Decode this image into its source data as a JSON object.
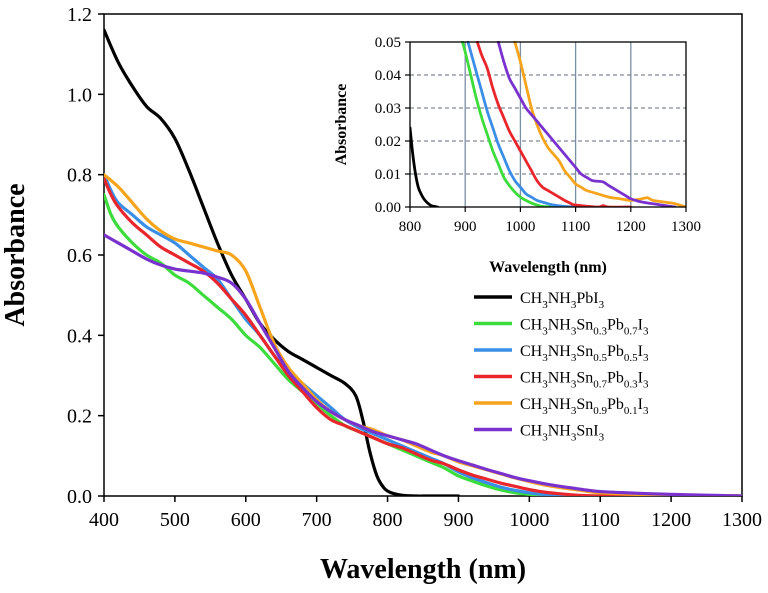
{
  "chart_data": [
    {
      "id": "main",
      "type": "line",
      "title": "",
      "xlabel": "Wavelength (nm)",
      "ylabel": "Absorbance",
      "xlim": [
        400,
        1300
      ],
      "ylim": [
        0,
        1.2
      ],
      "xticks": [
        400,
        500,
        600,
        700,
        800,
        900,
        1000,
        1100,
        1200,
        1300
      ],
      "yticks": [
        0.0,
        0.2,
        0.4,
        0.6,
        0.8,
        1.0,
        1.2
      ],
      "ytick_labels": [
        "0.0",
        "0.2",
        "0.4",
        "0.6",
        "0.8",
        "1.0",
        "1.2"
      ],
      "grid": false,
      "legend_position": "right",
      "series": [
        {
          "name": "CH3NH3PbI3",
          "legend_parts": [
            [
              "CH",
              ""
            ],
            [
              "3",
              "sub"
            ],
            [
              "NH",
              ""
            ],
            [
              "3",
              "sub"
            ],
            [
              "PbI",
              ""
            ],
            [
              "3",
              "sub"
            ]
          ],
          "color": "#000000",
          "x": [
            400,
            420,
            440,
            460,
            480,
            500,
            520,
            540,
            560,
            580,
            600,
            620,
            640,
            660,
            680,
            700,
            720,
            740,
            755,
            765,
            775,
            785,
            795,
            805,
            820,
            840,
            860,
            900
          ],
          "y": [
            1.16,
            1.08,
            1.02,
            0.97,
            0.94,
            0.89,
            0.81,
            0.72,
            0.63,
            0.55,
            0.49,
            0.43,
            0.39,
            0.36,
            0.34,
            0.32,
            0.3,
            0.28,
            0.25,
            0.19,
            0.11,
            0.05,
            0.02,
            0.008,
            0.002,
            0.0,
            0.0,
            0.0
          ]
        },
        {
          "name": "CH3NH3Sn0.3Pb0.7I3",
          "legend_parts": [
            [
              "CH",
              ""
            ],
            [
              "3",
              "sub"
            ],
            [
              "NH",
              ""
            ],
            [
              "3",
              "sub"
            ],
            [
              "Sn",
              ""
            ],
            [
              "0.3",
              "sub"
            ],
            [
              "Pb",
              ""
            ],
            [
              "0.7",
              "sub"
            ],
            [
              "I",
              ""
            ],
            [
              "3",
              "sub"
            ]
          ],
          "color": "#3ddc3d",
          "x": [
            400,
            410,
            420,
            440,
            460,
            480,
            500,
            520,
            540,
            560,
            580,
            600,
            620,
            640,
            660,
            680,
            700,
            720,
            740,
            760,
            780,
            800,
            820,
            840,
            860,
            880,
            900,
            920,
            940,
            960,
            980,
            1000,
            1020,
            1050,
            1100,
            1200,
            1300
          ],
          "y": [
            0.75,
            0.7,
            0.67,
            0.63,
            0.6,
            0.58,
            0.55,
            0.53,
            0.5,
            0.47,
            0.44,
            0.4,
            0.37,
            0.33,
            0.29,
            0.26,
            0.23,
            0.2,
            0.175,
            0.16,
            0.145,
            0.13,
            0.115,
            0.1,
            0.085,
            0.07,
            0.05,
            0.037,
            0.025,
            0.015,
            0.008,
            0.004,
            0.002,
            0.0,
            0.0,
            0.0,
            0.0
          ]
        },
        {
          "name": "CH3NH3Sn0.5Pb0.5I3",
          "legend_parts": [
            [
              "CH",
              ""
            ],
            [
              "3",
              "sub"
            ],
            [
              "NH",
              ""
            ],
            [
              "3",
              "sub"
            ],
            [
              "Sn",
              ""
            ],
            [
              "0.5",
              "sub"
            ],
            [
              "Pb",
              ""
            ],
            [
              "0.5",
              "sub"
            ],
            [
              "I",
              ""
            ],
            [
              "3",
              "sub"
            ]
          ],
          "color": "#3a8ee6",
          "x": [
            400,
            410,
            420,
            440,
            460,
            480,
            500,
            520,
            540,
            560,
            580,
            600,
            620,
            640,
            660,
            680,
            700,
            720,
            740,
            760,
            780,
            800,
            820,
            840,
            860,
            880,
            900,
            920,
            940,
            960,
            980,
            1000,
            1020,
            1050,
            1080,
            1100,
            1200,
            1300
          ],
          "y": [
            0.8,
            0.76,
            0.73,
            0.7,
            0.67,
            0.65,
            0.63,
            0.6,
            0.57,
            0.54,
            0.49,
            0.44,
            0.4,
            0.35,
            0.31,
            0.28,
            0.25,
            0.22,
            0.19,
            0.17,
            0.155,
            0.14,
            0.125,
            0.11,
            0.095,
            0.08,
            0.06,
            0.045,
            0.033,
            0.022,
            0.014,
            0.008,
            0.004,
            0.002,
            0.0,
            0.0,
            0.0,
            0.0
          ]
        },
        {
          "name": "CH3NH3Sn0.7Pb0.3I3",
          "legend_parts": [
            [
              "CH",
              ""
            ],
            [
              "3",
              "sub"
            ],
            [
              "NH",
              ""
            ],
            [
              "3",
              "sub"
            ],
            [
              "Sn",
              ""
            ],
            [
              "0.7",
              "sub"
            ],
            [
              "Pb",
              ""
            ],
            [
              "0.3",
              "sub"
            ],
            [
              "I",
              ""
            ],
            [
              "3",
              "sub"
            ]
          ],
          "color": "#e8262b",
          "x": [
            400,
            410,
            420,
            440,
            460,
            480,
            500,
            520,
            540,
            560,
            580,
            600,
            620,
            640,
            660,
            680,
            700,
            720,
            740,
            760,
            780,
            800,
            820,
            840,
            860,
            880,
            900,
            920,
            940,
            960,
            980,
            1000,
            1020,
            1040,
            1060,
            1080,
            1100,
            1150,
            1200,
            1300
          ],
          "y": [
            0.79,
            0.75,
            0.72,
            0.68,
            0.65,
            0.62,
            0.6,
            0.58,
            0.56,
            0.53,
            0.49,
            0.45,
            0.4,
            0.35,
            0.3,
            0.26,
            0.22,
            0.19,
            0.175,
            0.16,
            0.145,
            0.13,
            0.12,
            0.105,
            0.09,
            0.08,
            0.065,
            0.052,
            0.042,
            0.032,
            0.024,
            0.016,
            0.01,
            0.006,
            0.003,
            0.001,
            0.0,
            0.0,
            0.0,
            0.0
          ]
        },
        {
          "name": "CH3NH3Sn0.9Pb0.1I3",
          "legend_parts": [
            [
              "CH",
              ""
            ],
            [
              "3",
              "sub"
            ],
            [
              "NH",
              ""
            ],
            [
              "3",
              "sub"
            ],
            [
              "Sn",
              ""
            ],
            [
              "0.9",
              "sub"
            ],
            [
              "Pb",
              ""
            ],
            [
              "0.1",
              "sub"
            ],
            [
              "I",
              ""
            ],
            [
              "3",
              "sub"
            ]
          ],
          "color": "#f7a41d",
          "x": [
            400,
            420,
            440,
            460,
            480,
            500,
            520,
            540,
            560,
            580,
            600,
            620,
            640,
            660,
            680,
            700,
            720,
            740,
            760,
            780,
            800,
            820,
            840,
            860,
            880,
            900,
            920,
            940,
            960,
            980,
            1000,
            1020,
            1040,
            1060,
            1080,
            1100,
            1150,
            1200,
            1250,
            1300
          ],
          "y": [
            0.8,
            0.77,
            0.73,
            0.69,
            0.66,
            0.64,
            0.63,
            0.62,
            0.61,
            0.6,
            0.56,
            0.47,
            0.38,
            0.32,
            0.28,
            0.24,
            0.21,
            0.19,
            0.175,
            0.165,
            0.15,
            0.14,
            0.125,
            0.11,
            0.1,
            0.085,
            0.075,
            0.065,
            0.055,
            0.045,
            0.036,
            0.028,
            0.022,
            0.017,
            0.012,
            0.008,
            0.004,
            0.002,
            0.001,
            0.0
          ]
        },
        {
          "name": "CH3NH3SnI3",
          "legend_parts": [
            [
              "CH",
              ""
            ],
            [
              "3",
              "sub"
            ],
            [
              "NH",
              ""
            ],
            [
              "3",
              "sub"
            ],
            [
              "SnI",
              ""
            ],
            [
              "3",
              "sub"
            ]
          ],
          "color": "#7a32cf",
          "x": [
            400,
            420,
            440,
            460,
            480,
            500,
            520,
            540,
            560,
            580,
            600,
            620,
            640,
            660,
            680,
            700,
            720,
            740,
            760,
            780,
            800,
            820,
            840,
            860,
            880,
            900,
            920,
            940,
            960,
            980,
            1000,
            1020,
            1040,
            1060,
            1080,
            1100,
            1150,
            1200,
            1250,
            1300
          ],
          "y": [
            0.65,
            0.63,
            0.61,
            0.59,
            0.575,
            0.565,
            0.56,
            0.555,
            0.545,
            0.53,
            0.49,
            0.43,
            0.37,
            0.31,
            0.27,
            0.235,
            0.21,
            0.19,
            0.175,
            0.16,
            0.15,
            0.14,
            0.13,
            0.115,
            0.1,
            0.088,
            0.077,
            0.066,
            0.056,
            0.046,
            0.038,
            0.031,
            0.025,
            0.02,
            0.015,
            0.011,
            0.007,
            0.004,
            0.002,
            0.0
          ]
        }
      ]
    },
    {
      "id": "inset",
      "type": "line",
      "title": "",
      "xlabel": "Wavelength (nm)",
      "ylabel": "Absorbance",
      "xlim": [
        800,
        1300
      ],
      "ylim": [
        0,
        0.05
      ],
      "xticks": [
        800,
        900,
        1000,
        1100,
        1200,
        1300
      ],
      "yticks": [
        0.0,
        0.01,
        0.02,
        0.03,
        0.04,
        0.05
      ],
      "ytick_labels": [
        "0.00",
        "0.01",
        "0.02",
        "0.03",
        "0.04",
        "0.05"
      ],
      "grid": true,
      "series": [
        {
          "name": "CH3NH3PbI3",
          "color": "#000000",
          "x": [
            800,
            805,
            810,
            815,
            820,
            825,
            830,
            835,
            840,
            850
          ],
          "y": [
            0.024,
            0.016,
            0.01,
            0.006,
            0.004,
            0.0025,
            0.0015,
            0.0008,
            0.0003,
            0.0
          ]
        },
        {
          "name": "CH3NH3Sn0.3Pb0.7I3",
          "color": "#3ddc3d",
          "x": [
            895,
            900,
            910,
            920,
            930,
            940,
            950,
            960,
            970,
            980,
            990,
            1000,
            1010,
            1020,
            1030,
            1040,
            1060,
            1100
          ],
          "y": [
            0.05,
            0.047,
            0.04,
            0.033,
            0.027,
            0.022,
            0.017,
            0.013,
            0.009,
            0.0065,
            0.0045,
            0.003,
            0.002,
            0.0012,
            0.0006,
            0.0002,
            0.0,
            0.0
          ]
        },
        {
          "name": "CH3NH3Sn0.5Pb0.5I3",
          "color": "#3a8ee6",
          "x": [
            905,
            910,
            920,
            930,
            940,
            950,
            960,
            970,
            980,
            990,
            1000,
            1010,
            1020,
            1030,
            1040,
            1050,
            1060,
            1080,
            1100
          ],
          "y": [
            0.05,
            0.047,
            0.041,
            0.035,
            0.029,
            0.024,
            0.019,
            0.015,
            0.011,
            0.008,
            0.006,
            0.004,
            0.003,
            0.002,
            0.0015,
            0.001,
            0.0006,
            0.0002,
            0.0
          ]
        },
        {
          "name": "CH3NH3Sn0.7Pb0.3I3",
          "color": "#e8262b",
          "x": [
            922,
            930,
            940,
            950,
            960,
            970,
            980,
            990,
            1000,
            1010,
            1020,
            1030,
            1040,
            1050,
            1060,
            1070,
            1080,
            1090,
            1100,
            1140,
            1150,
            1160,
            1200
          ],
          "y": [
            0.05,
            0.046,
            0.042,
            0.036,
            0.031,
            0.027,
            0.023,
            0.02,
            0.017,
            0.014,
            0.011,
            0.008,
            0.006,
            0.005,
            0.004,
            0.003,
            0.002,
            0.0012,
            0.0006,
            0.0,
            0.0004,
            0.0,
            0.0
          ]
        },
        {
          "name": "CH3NH3Sn0.9Pb0.1I3",
          "color": "#f7a41d",
          "x": [
            990,
            1000,
            1010,
            1020,
            1030,
            1040,
            1050,
            1060,
            1070,
            1080,
            1090,
            1100,
            1110,
            1120,
            1140,
            1160,
            1180,
            1200,
            1220,
            1230,
            1240,
            1260,
            1280,
            1300
          ],
          "y": [
            0.05,
            0.044,
            0.037,
            0.03,
            0.025,
            0.021,
            0.018,
            0.016,
            0.014,
            0.011,
            0.009,
            0.007,
            0.006,
            0.005,
            0.004,
            0.003,
            0.0025,
            0.002,
            0.0025,
            0.0028,
            0.002,
            0.0015,
            0.001,
            0.0
          ]
        },
        {
          "name": "CH3NH3SnI3",
          "color": "#7a32cf",
          "x": [
            960,
            970,
            980,
            990,
            1000,
            1010,
            1020,
            1030,
            1040,
            1050,
            1060,
            1070,
            1080,
            1090,
            1100,
            1110,
            1120,
            1130,
            1140,
            1150,
            1160,
            1170,
            1180,
            1190,
            1200,
            1220,
            1240,
            1260,
            1280
          ],
          "y": [
            0.05,
            0.044,
            0.039,
            0.036,
            0.033,
            0.03,
            0.028,
            0.026,
            0.024,
            0.022,
            0.02,
            0.018,
            0.016,
            0.014,
            0.012,
            0.01,
            0.009,
            0.008,
            0.0078,
            0.0076,
            0.0065,
            0.0055,
            0.0045,
            0.0035,
            0.0025,
            0.0015,
            0.001,
            0.0005,
            0.0
          ]
        }
      ]
    }
  ]
}
